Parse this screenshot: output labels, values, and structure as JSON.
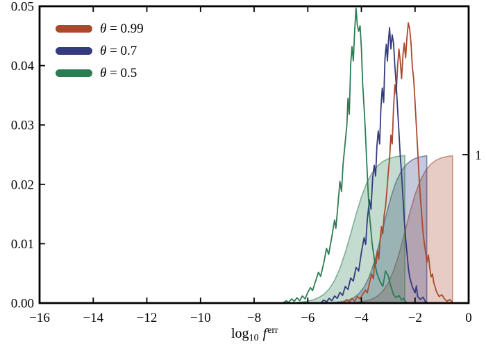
{
  "figure": {
    "xlabel": {
      "log": "log",
      "sub": "10",
      "func": "f",
      "sup": "err"
    }
  },
  "legend": {
    "items": [
      {
        "symbol": "θ",
        "rest": " = 0.99",
        "color": "#a8492e"
      },
      {
        "symbol": "θ",
        "rest": " = 0.7",
        "color": "#333a7d"
      },
      {
        "symbol": "θ",
        "rest": " = 0.5",
        "color": "#2b7c52"
      }
    ]
  },
  "chart_data": {
    "type": "line",
    "subtype": "probability densities (jagged solid lines, left axis) with shaded cumulative distributions (smooth filled sigmoids, right axis)",
    "title": "",
    "xlabel": "log10 f^err",
    "ylabel_left": "",
    "ylabel_right": "",
    "xlim": [
      -16,
      0
    ],
    "ylim_left": [
      0,
      0.05
    ],
    "right_axis_tick": {
      "value": 1,
      "label": "1",
      "left_axis_equivalent": 0.025
    },
    "grid": false,
    "legend_position": "upper left",
    "xticks": {
      "values": [
        -16,
        -14,
        -12,
        -10,
        -8,
        -6,
        -4,
        -2,
        0
      ],
      "labels": [
        "−16",
        "−14",
        "−12",
        "−10",
        "−8",
        "−6",
        "−4",
        "−2",
        "0"
      ]
    },
    "yticks_left": {
      "values": [
        0,
        0.01,
        0.02,
        0.03,
        0.04,
        0.05
      ],
      "labels": [
        "0.00",
        "0.01",
        "0.02",
        "0.03",
        "0.04",
        "0.05"
      ]
    },
    "series": [
      {
        "name": "theta = 0.99",
        "theta": 0.99,
        "color": "#a8492e",
        "pdf": [
          [
            -4.65,
            0.0001
          ],
          [
            -4.55,
            0.0006
          ],
          [
            -4.45,
            0.0002
          ],
          [
            -4.35,
            0.0008
          ],
          [
            -4.25,
            0.0003
          ],
          [
            -4.15,
            0.0011
          ],
          [
            -4.05,
            0.0007
          ],
          [
            -3.95,
            0.0015
          ],
          [
            -3.85,
            0.0022
          ],
          [
            -3.78,
            0.0017
          ],
          [
            -3.7,
            0.0034
          ],
          [
            -3.62,
            0.0049
          ],
          [
            -3.55,
            0.0041
          ],
          [
            -3.5,
            0.0074
          ],
          [
            -3.45,
            0.0066
          ],
          [
            -3.4,
            0.0089
          ],
          [
            -3.35,
            0.0074
          ],
          [
            -3.3,
            0.0108
          ],
          [
            -3.25,
            0.0129
          ],
          [
            -3.2,
            0.0117
          ],
          [
            -3.15,
            0.0148
          ],
          [
            -3.1,
            0.0163
          ],
          [
            -3.05,
            0.0188
          ],
          [
            -3.0,
            0.0218
          ],
          [
            -2.95,
            0.0243
          ],
          [
            -2.9,
            0.0283
          ],
          [
            -2.85,
            0.0268
          ],
          [
            -2.8,
            0.0328
          ],
          [
            -2.75,
            0.0368
          ],
          [
            -2.7,
            0.0352
          ],
          [
            -2.65,
            0.0398
          ],
          [
            -2.6,
            0.0428
          ],
          [
            -2.55,
            0.0408
          ],
          [
            -2.5,
            0.0378
          ],
          [
            -2.45,
            0.0418
          ],
          [
            -2.4,
            0.0438
          ],
          [
            -2.35,
            0.0413
          ],
          [
            -2.3,
            0.0448
          ],
          [
            -2.25,
            0.0472
          ],
          [
            -2.2,
            0.0462
          ],
          [
            -2.15,
            0.0438
          ],
          [
            -2.1,
            0.0398
          ],
          [
            -2.05,
            0.0378
          ],
          [
            -2.0,
            0.0338
          ],
          [
            -1.95,
            0.0298
          ],
          [
            -1.9,
            0.0258
          ],
          [
            -1.85,
            0.0214
          ],
          [
            -1.8,
            0.0178
          ],
          [
            -1.75,
            0.0148
          ],
          [
            -1.7,
            0.0119
          ],
          [
            -1.65,
            0.0099
          ],
          [
            -1.6,
            0.0084
          ],
          [
            -1.55,
            0.0069
          ],
          [
            -1.5,
            0.0081
          ],
          [
            -1.45,
            0.0059
          ],
          [
            -1.4,
            0.0044
          ],
          [
            -1.35,
            0.0049
          ],
          [
            -1.3,
            0.0034
          ],
          [
            -1.25,
            0.0027
          ],
          [
            -1.2,
            0.0019
          ],
          [
            -1.1,
            0.0011
          ],
          [
            -1.0,
            0.0014
          ],
          [
            -0.9,
            0.0007
          ],
          [
            -0.8,
            0.0003
          ],
          [
            -0.7,
            0.0006
          ],
          [
            -0.6,
            0.0001
          ]
        ],
        "cdf": [
          [
            -4.2,
            0.005
          ],
          [
            -4.0,
            0.009
          ],
          [
            -3.8,
            0.016
          ],
          [
            -3.6,
            0.027
          ],
          [
            -3.4,
            0.047
          ],
          [
            -3.2,
            0.081
          ],
          [
            -3.0,
            0.135
          ],
          [
            -2.8,
            0.217
          ],
          [
            -2.6,
            0.329
          ],
          [
            -2.4,
            0.464
          ],
          [
            -2.2,
            0.606
          ],
          [
            -2.0,
            0.731
          ],
          [
            -1.8,
            0.828
          ],
          [
            -1.6,
            0.895
          ],
          [
            -1.4,
            0.938
          ],
          [
            -1.2,
            0.964
          ],
          [
            -1.0,
            0.98
          ],
          [
            -0.8,
            0.988
          ],
          [
            -0.6,
            0.993
          ]
        ]
      },
      {
        "name": "theta = 0.7",
        "theta": 0.7,
        "color": "#333a7d",
        "pdf": [
          [
            -5.5,
            0.0001
          ],
          [
            -5.4,
            0.0005
          ],
          [
            -5.3,
            0.0002
          ],
          [
            -5.2,
            0.0008
          ],
          [
            -5.1,
            0.0004
          ],
          [
            -5.0,
            0.0012
          ],
          [
            -4.9,
            0.0008
          ],
          [
            -4.8,
            0.0018
          ],
          [
            -4.7,
            0.0013
          ],
          [
            -4.6,
            0.0028
          ],
          [
            -4.5,
            0.0023
          ],
          [
            -4.4,
            0.0042
          ],
          [
            -4.3,
            0.0037
          ],
          [
            -4.2,
            0.006
          ],
          [
            -4.1,
            0.0054
          ],
          [
            -4.0,
            0.0085
          ],
          [
            -3.9,
            0.011
          ],
          [
            -3.84,
            0.0099
          ],
          [
            -3.78,
            0.014
          ],
          [
            -3.7,
            0.0174
          ],
          [
            -3.64,
            0.0158
          ],
          [
            -3.58,
            0.021
          ],
          [
            -3.52,
            0.0232
          ],
          [
            -3.47,
            0.0214
          ],
          [
            -3.42,
            0.0265
          ],
          [
            -3.37,
            0.029
          ],
          [
            -3.32,
            0.0268
          ],
          [
            -3.27,
            0.033
          ],
          [
            -3.22,
            0.0362
          ],
          [
            -3.17,
            0.0338
          ],
          [
            -3.12,
            0.0412
          ],
          [
            -3.07,
            0.0436
          ],
          [
            -3.03,
            0.0408
          ],
          [
            -2.99,
            0.0442
          ],
          [
            -2.95,
            0.0464
          ],
          [
            -2.9,
            0.0428
          ],
          [
            -2.85,
            0.0452
          ],
          [
            -2.8,
            0.0438
          ],
          [
            -2.75,
            0.0398
          ],
          [
            -2.7,
            0.0368
          ],
          [
            -2.65,
            0.0328
          ],
          [
            -2.6,
            0.0288
          ],
          [
            -2.55,
            0.0248
          ],
          [
            -2.5,
            0.0218
          ],
          [
            -2.45,
            0.0178
          ],
          [
            -2.4,
            0.014
          ],
          [
            -2.35,
            0.011
          ],
          [
            -2.3,
            0.0084
          ],
          [
            -2.25,
            0.006
          ],
          [
            -2.2,
            0.0044
          ],
          [
            -2.1,
            0.0027
          ],
          [
            -2.0,
            0.0017
          ],
          [
            -1.95,
            0.0029
          ],
          [
            -1.9,
            0.0011
          ],
          [
            -1.8,
            0.0006
          ],
          [
            -1.7,
            0.001
          ],
          [
            -1.62,
            0.0003
          ],
          [
            -1.55,
            0.0001
          ]
        ],
        "cdf": [
          [
            -5.1,
            0.003
          ],
          [
            -4.9,
            0.006
          ],
          [
            -4.7,
            0.011
          ],
          [
            -4.5,
            0.019
          ],
          [
            -4.3,
            0.035
          ],
          [
            -4.1,
            0.061
          ],
          [
            -3.9,
            0.107
          ],
          [
            -3.7,
            0.18
          ],
          [
            -3.5,
            0.287
          ],
          [
            -3.3,
            0.425
          ],
          [
            -3.1,
            0.575
          ],
          [
            -2.9,
            0.713
          ],
          [
            -2.7,
            0.82
          ],
          [
            -2.5,
            0.893
          ],
          [
            -2.3,
            0.939
          ],
          [
            -2.1,
            0.966
          ],
          [
            -1.9,
            0.981
          ],
          [
            -1.7,
            0.989
          ],
          [
            -1.56,
            0.993
          ]
        ]
      },
      {
        "name": "theta = 0.5",
        "theta": 0.5,
        "color": "#2b7c52",
        "pdf": [
          [
            -6.9,
            0.0001
          ],
          [
            -6.8,
            0.0004
          ],
          [
            -6.72,
            0.0001
          ],
          [
            -6.6,
            0.0007
          ],
          [
            -6.5,
            0.0003
          ],
          [
            -6.4,
            0.0009
          ],
          [
            -6.3,
            0.0004
          ],
          [
            -6.2,
            0.0012
          ],
          [
            -6.1,
            0.0007
          ],
          [
            -6.0,
            0.0018
          ],
          [
            -5.9,
            0.0026
          ],
          [
            -5.82,
            0.0021
          ],
          [
            -5.7,
            0.0038
          ],
          [
            -5.6,
            0.0052
          ],
          [
            -5.52,
            0.0045
          ],
          [
            -5.4,
            0.0068
          ],
          [
            -5.3,
            0.0092
          ],
          [
            -5.22,
            0.0082
          ],
          [
            -5.1,
            0.0112
          ],
          [
            -5.0,
            0.014
          ],
          [
            -4.95,
            0.0126
          ],
          [
            -4.88,
            0.0162
          ],
          [
            -4.8,
            0.0205
          ],
          [
            -4.74,
            0.0188
          ],
          [
            -4.68,
            0.0235
          ],
          [
            -4.6,
            0.0272
          ],
          [
            -4.54,
            0.03
          ],
          [
            -4.5,
            0.0345
          ],
          [
            -4.45,
            0.0318
          ],
          [
            -4.4,
            0.0402
          ],
          [
            -4.35,
            0.0432
          ],
          [
            -4.3,
            0.0408
          ],
          [
            -4.25,
            0.0458
          ],
          [
            -4.2,
            0.0497
          ],
          [
            -4.15,
            0.0468
          ],
          [
            -4.1,
            0.0458
          ],
          [
            -4.05,
            0.0467
          ],
          [
            -4.0,
            0.043
          ],
          [
            -3.95,
            0.0368
          ],
          [
            -3.9,
            0.033
          ],
          [
            -3.85,
            0.0288
          ],
          [
            -3.8,
            0.0238
          ],
          [
            -3.75,
            0.0188
          ],
          [
            -3.7,
            0.015
          ],
          [
            -3.6,
            0.01
          ],
          [
            -3.5,
            0.0068
          ],
          [
            -3.42,
            0.005
          ],
          [
            -3.3,
            0.0036
          ],
          [
            -3.2,
            0.0028
          ],
          [
            -3.1,
            0.0054
          ],
          [
            -3.0,
            0.0046
          ],
          [
            -2.9,
            0.0028
          ],
          [
            -2.8,
            0.0014
          ],
          [
            -2.7,
            0.0009
          ],
          [
            -2.6,
            0.0013
          ],
          [
            -2.5,
            0.0005
          ],
          [
            -2.42,
            0.0008
          ],
          [
            -2.33,
            0.0001
          ]
        ],
        "cdf": [
          [
            -6.4,
            0.004
          ],
          [
            -6.2,
            0.008
          ],
          [
            -6.0,
            0.013
          ],
          [
            -5.8,
            0.022
          ],
          [
            -5.6,
            0.036
          ],
          [
            -5.4,
            0.059
          ],
          [
            -5.2,
            0.096
          ],
          [
            -5.0,
            0.153
          ],
          [
            -4.8,
            0.234
          ],
          [
            -4.6,
            0.341
          ],
          [
            -4.4,
            0.467
          ],
          [
            -4.2,
            0.597
          ],
          [
            -4.0,
            0.715
          ],
          [
            -3.8,
            0.81
          ],
          [
            -3.6,
            0.878
          ],
          [
            -3.4,
            0.924
          ],
          [
            -3.2,
            0.954
          ],
          [
            -3.0,
            0.972
          ],
          [
            -2.8,
            0.983
          ],
          [
            -2.6,
            0.99
          ],
          [
            -2.38,
            0.994
          ]
        ]
      }
    ]
  }
}
